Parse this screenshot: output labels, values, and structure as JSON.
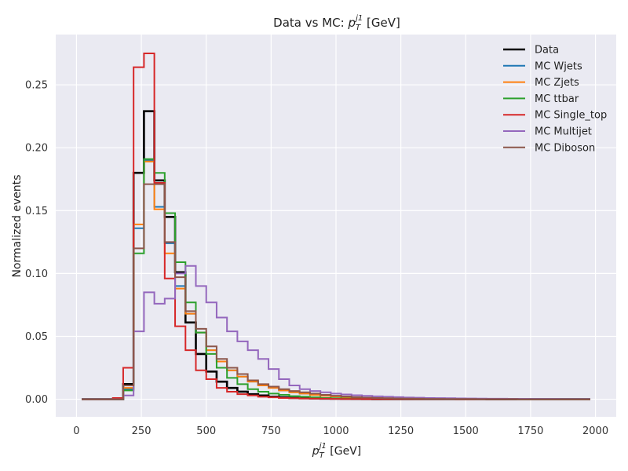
{
  "chart_data": {
    "type": "line",
    "style": "step-histogram",
    "title_prefix": "Data vs MC: ",
    "title_var": "p",
    "title_sub": "T",
    "title_sup": "j1",
    "title_suffix": " [GeV]",
    "xlabel_var": "p",
    "xlabel_sub": "T",
    "xlabel_sup": "j1",
    "xlabel_suffix": " [GeV]",
    "ylabel": "Normalized events",
    "xlim": [
      -80,
      2080
    ],
    "ylim": [
      -0.014,
      0.29
    ],
    "xticks": [
      0,
      250,
      500,
      750,
      1000,
      1250,
      1500,
      1750,
      2000
    ],
    "xtick_labels": [
      "0",
      "250",
      "500",
      "750",
      "1000",
      "1250",
      "1500",
      "1750",
      "2000"
    ],
    "yticks": [
      0.0,
      0.05,
      0.1,
      0.15,
      0.2,
      0.25
    ],
    "ytick_labels": [
      "0.00",
      "0.05",
      "0.10",
      "0.15",
      "0.20",
      "0.25"
    ],
    "grid": true,
    "legend_position": "top-right",
    "bin_edges": [
      20,
      60,
      100,
      140,
      180,
      220,
      260,
      300,
      340,
      380,
      420,
      460,
      500,
      540,
      580,
      620,
      660,
      700,
      740,
      780,
      820,
      860,
      900,
      940,
      980,
      1020,
      1060,
      1100,
      1140,
      1180,
      1220,
      1260,
      1300,
      1340,
      1380,
      1420,
      1460,
      1500,
      1540,
      1580,
      1620,
      1660,
      1700,
      1740,
      1780,
      1820,
      1860,
      1900,
      1940,
      1980
    ],
    "series": [
      {
        "name": "Data",
        "color": "#000000",
        "width": 2.6,
        "values": [
          0,
          0,
          0,
          0,
          0.012,
          0.18,
          0.229,
          0.174,
          0.145,
          0.101,
          0.061,
          0.036,
          0.022,
          0.014,
          0.009,
          0.006,
          0.004,
          0.003,
          0.002,
          0.0015,
          0.001,
          0.0008,
          0.0006,
          0.0005,
          0.0004,
          0.0003,
          0.0002,
          0.00015,
          0.0001,
          0.0001,
          0.0001,
          0.0001,
          0.0001,
          0.0001,
          0.0001,
          0.0001,
          0.0001,
          0.0001,
          0.0001,
          0,
          0,
          0,
          0,
          0,
          0,
          0,
          0,
          0,
          0
        ]
      },
      {
        "name": "MC Wjets",
        "color": "#1f77b4",
        "width": 2,
        "values": [
          0,
          0,
          0,
          0,
          0.008,
          0.136,
          0.19,
          0.153,
          0.124,
          0.09,
          0.068,
          0.053,
          0.039,
          0.03,
          0.023,
          0.018,
          0.014,
          0.011,
          0.009,
          0.007,
          0.0055,
          0.0045,
          0.0035,
          0.0028,
          0.0022,
          0.0017,
          0.0013,
          0.001,
          0.0008,
          0.0006,
          0.0005,
          0.0004,
          0.0003,
          0.0003,
          0.0002,
          0.0002,
          0.0002,
          0.0001,
          0.0001,
          0.0001,
          0.0001,
          0.0001,
          0,
          0,
          0,
          0,
          0,
          0,
          0
        ]
      },
      {
        "name": "MC Zjets",
        "color": "#ff7f0e",
        "width": 2,
        "values": [
          0,
          0,
          0,
          0,
          0.009,
          0.139,
          0.189,
          0.151,
          0.116,
          0.088,
          0.068,
          0.053,
          0.039,
          0.03,
          0.023,
          0.018,
          0.014,
          0.011,
          0.009,
          0.007,
          0.0055,
          0.0045,
          0.0035,
          0.0028,
          0.0022,
          0.0017,
          0.0013,
          0.001,
          0.0008,
          0.0006,
          0.0005,
          0.0004,
          0.0003,
          0.0003,
          0.0002,
          0.0002,
          0.0002,
          0.0001,
          0.0001,
          0.0001,
          0.0001,
          0.0001,
          0,
          0,
          0,
          0,
          0,
          0,
          0
        ]
      },
      {
        "name": "MC ttbar",
        "color": "#2ca02c",
        "width": 2,
        "values": [
          0,
          0,
          0,
          0,
          0.007,
          0.116,
          0.191,
          0.18,
          0.148,
          0.109,
          0.077,
          0.053,
          0.036,
          0.025,
          0.017,
          0.012,
          0.008,
          0.006,
          0.0045,
          0.0035,
          0.0025,
          0.002,
          0.0015,
          0.001,
          0.0008,
          0.0006,
          0.0005,
          0.0004,
          0.0003,
          0.0002,
          0.0002,
          0.0001,
          0.0001,
          0.0001,
          0.0001,
          0.0001,
          0,
          0,
          0,
          0,
          0,
          0,
          0,
          0,
          0,
          0,
          0,
          0,
          0
        ]
      },
      {
        "name": "MC Single_top",
        "color": "#d62728",
        "width": 2,
        "values": [
          0,
          0,
          0,
          0.001,
          0.025,
          0.264,
          0.275,
          0.172,
          0.096,
          0.058,
          0.039,
          0.023,
          0.016,
          0.009,
          0.006,
          0.004,
          0.003,
          0.002,
          0.0015,
          0.001,
          0.0008,
          0.0006,
          0.0005,
          0.0004,
          0.0003,
          0.0002,
          0.0002,
          0.0001,
          0.0001,
          0.0001,
          0.0001,
          0.0001,
          0.0001,
          0.0001,
          0.0001,
          0.0001,
          0,
          0,
          0,
          0,
          0,
          0,
          0,
          0,
          0,
          0,
          0,
          0,
          0
        ]
      },
      {
        "name": "MC Multijet",
        "color": "#9467bd",
        "width": 2,
        "values": [
          0,
          0,
          0,
          0,
          0.003,
          0.054,
          0.085,
          0.076,
          0.08,
          0.1,
          0.106,
          0.09,
          0.077,
          0.065,
          0.054,
          0.046,
          0.039,
          0.032,
          0.024,
          0.016,
          0.011,
          0.008,
          0.0065,
          0.0055,
          0.0045,
          0.0038,
          0.0032,
          0.0027,
          0.0023,
          0.002,
          0.0017,
          0.0014,
          0.0012,
          0.001,
          0.0009,
          0.0008,
          0.0007,
          0.0006,
          0.0005,
          0.0004,
          0.0004,
          0.0003,
          0.0003,
          0.0002,
          0.0002,
          0.0002,
          0.0001,
          0.0001,
          0.0001
        ]
      },
      {
        "name": "MC Diboson",
        "color": "#8c564b",
        "width": 2,
        "values": [
          0,
          0,
          0,
          0,
          0.011,
          0.12,
          0.171,
          0.171,
          0.125,
          0.097,
          0.07,
          0.056,
          0.042,
          0.032,
          0.025,
          0.02,
          0.015,
          0.012,
          0.01,
          0.008,
          0.0065,
          0.0055,
          0.0045,
          0.0035,
          0.0028,
          0.0022,
          0.0017,
          0.0013,
          0.001,
          0.0008,
          0.0006,
          0.0005,
          0.0004,
          0.0003,
          0.0003,
          0.0002,
          0.0002,
          0.0002,
          0.0001,
          0.0001,
          0.0001,
          0.0001,
          0,
          0,
          0,
          0,
          0,
          0,
          0
        ]
      }
    ],
    "colors": {
      "plot_background": "#eaeaf2",
      "grid": "#ffffff",
      "page_background": "#ffffff"
    }
  }
}
